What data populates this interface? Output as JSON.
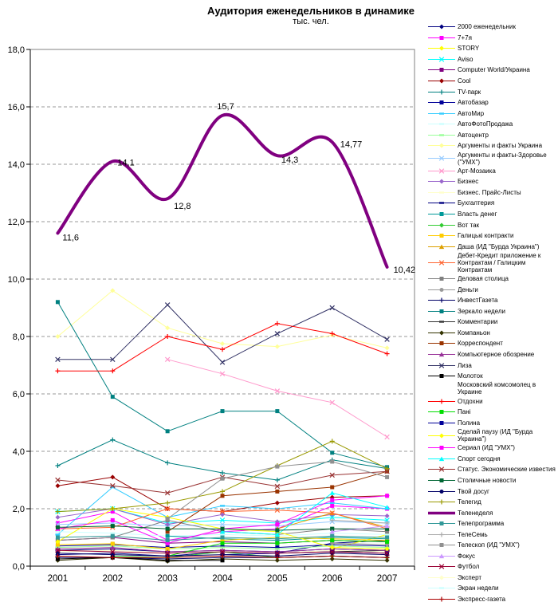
{
  "chart": {
    "title": "Аудитория еженедельников в динамике",
    "subtitle": "тыс. чел."
  },
  "chart_data": {
    "type": "line",
    "categories": [
      "2001",
      "2002",
      "2003",
      "2004",
      "2005",
      "2006",
      "2007"
    ],
    "ylim": [
      0,
      18
    ],
    "y_tick_step": 2,
    "y_tick_labels": [
      "0,0",
      "2,0",
      "4,0",
      "6,0",
      "8,0",
      "10,0",
      "12,0",
      "14,0",
      "16,0",
      "18,0"
    ],
    "grid": "horizontal-dashed",
    "legend_position": "right",
    "highlight_series": "Теленеделя",
    "point_labels": {
      "series": "Теленеделя",
      "labels": [
        "11,6",
        "14,1",
        "12,8",
        "15,7",
        "14,3",
        "14,77",
        "10,42"
      ],
      "offsets": [
        [
          6,
          5,
          "start"
        ],
        [
          6,
          1,
          "start"
        ],
        [
          8,
          9,
          "start"
        ],
        [
          4,
          -12,
          "middle"
        ],
        [
          5,
          5,
          "start"
        ],
        [
          10,
          2,
          "start"
        ],
        [
          8,
          3,
          "start"
        ]
      ]
    },
    "series": [
      {
        "name": "2000 еженедельник",
        "color": "#000080",
        "marker": "diamond",
        "values": [
          0.4,
          0.45,
          0.35,
          0.5,
          0.45,
          0.8,
          0.9
        ]
      },
      {
        "name": "7+7я",
        "color": "#ff00ff",
        "marker": "square",
        "values": [
          1.5,
          1.9,
          0.9,
          1.2,
          1.3,
          2.1,
          2.0
        ]
      },
      {
        "name": "STORY",
        "color": "#ffff00",
        "marker": "diamond",
        "values": [
          null,
          null,
          null,
          null,
          null,
          0.6,
          1.1
        ]
      },
      {
        "name": "Aviso",
        "color": "#00ffff",
        "marker": "x",
        "values": [
          1.9,
          2.0,
          1.5,
          1.6,
          1.5,
          1.7,
          1.6
        ]
      },
      {
        "name": "Computer World/Украина",
        "color": "#800080",
        "marker": "square",
        "values": [
          0.9,
          1.0,
          0.8,
          0.85,
          0.8,
          0.9,
          0.85
        ]
      },
      {
        "name": "Cool",
        "color": "#990000",
        "marker": "diamond",
        "values": [
          2.8,
          3.1,
          2.0,
          1.9,
          2.2,
          2.4,
          2.45
        ]
      },
      {
        "name": "TV-парк",
        "color": "#008080",
        "marker": "plus",
        "values": [
          3.5,
          4.4,
          3.6,
          3.25,
          3.0,
          3.7,
          3.4
        ]
      },
      {
        "name": "Автобазар",
        "color": "#000099",
        "marker": "square",
        "values": [
          0.7,
          0.75,
          0.65,
          0.7,
          0.65,
          0.75,
          0.7
        ]
      },
      {
        "name": "АвтоМир",
        "color": "#33ccff",
        "marker": "dash",
        "values": [
          1.1,
          2.75,
          1.7,
          2.1,
          2.0,
          2.2,
          2.0
        ]
      },
      {
        "name": "АвтоФотоПродажа",
        "color": "#ccffff",
        "marker": "dash",
        "values": [
          1.2,
          1.15,
          1.05,
          1.1,
          1.05,
          1.15,
          1.1
        ]
      },
      {
        "name": "Автоцентр",
        "color": "#99ff99",
        "marker": "dash",
        "values": [
          0.65,
          0.7,
          0.6,
          0.65,
          0.6,
          0.7,
          0.65
        ]
      },
      {
        "name": "Аргументы и факты Украина",
        "color": "#ffff99",
        "marker": "diamond",
        "values": [
          8.0,
          9.6,
          8.3,
          7.75,
          7.65,
          8.05,
          7.6
        ]
      },
      {
        "name": "Аргументы и факты-Здоровье (\"УМХ\")",
        "color": "#99ccff",
        "marker": "x",
        "values": [
          1.45,
          1.5,
          1.4,
          1.45,
          1.4,
          1.55,
          1.5
        ]
      },
      {
        "name": "Арт-Мозаика",
        "color": "#ff99cc",
        "marker": "x",
        "values": [
          null,
          null,
          7.2,
          6.7,
          6.1,
          5.7,
          4.5
        ]
      },
      {
        "name": "Бизнес",
        "color": "#9966cc",
        "marker": "diamond",
        "values": [
          1.7,
          2.0,
          1.45,
          1.8,
          1.55,
          1.8,
          1.75
        ]
      },
      {
        "name": "Бизнес. Прайс-Листы",
        "color": "#ffffcc",
        "marker": "dash",
        "values": [
          0.5,
          0.55,
          0.45,
          0.5,
          0.45,
          0.55,
          0.5
        ]
      },
      {
        "name": "Бухгалтерия",
        "color": "#000080",
        "marker": "dash",
        "values": [
          0.55,
          0.6,
          0.5,
          0.55,
          0.5,
          0.6,
          0.55
        ]
      },
      {
        "name": "Власть денег",
        "color": "#009999",
        "marker": "square",
        "values": [
          null,
          null,
          1.05,
          0.95,
          0.9,
          1.0,
          0.95
        ]
      },
      {
        "name": "Вот так",
        "color": "#33cc33",
        "marker": "diamond",
        "values": [
          null,
          0.35,
          0.3,
          0.5,
          0.3,
          0.35,
          0.3
        ]
      },
      {
        "name": "Галицькі контракти",
        "color": "#ffcc00",
        "marker": "square",
        "values": [
          0.75,
          0.78,
          0.6,
          0.9,
          1.0,
          0.95,
          0.9
        ]
      },
      {
        "name": "Даша (ИД \"Бурда Украина\")",
        "color": "#dda000",
        "marker": "triangle",
        "values": [
          null,
          null,
          null,
          null,
          1.3,
          1.85,
          1.35
        ]
      },
      {
        "name": "Дебет-Кредит приложение к Контрактам / Галицким Контрактам",
        "color": "#ff6633",
        "marker": "x",
        "values": [
          1.3,
          1.35,
          2.0,
          1.9,
          1.95,
          1.85,
          1.3
        ]
      },
      {
        "name": "Деловая столица",
        "color": "#808080",
        "marker": "square",
        "values": [
          0.9,
          1.0,
          1.6,
          1.2,
          1.1,
          1.3,
          1.2
        ]
      },
      {
        "name": "Деньги",
        "color": "#999999",
        "marker": "circle",
        "values": [
          null,
          null,
          null,
          null,
          null,
          0.8,
          0.75
        ]
      },
      {
        "name": "ИнвестГазета",
        "color": "#000066",
        "marker": "plus",
        "values": [
          0.3,
          0.3,
          0.25,
          0.3,
          0.3,
          0.35,
          0.3
        ]
      },
      {
        "name": "Зеркало недели",
        "color": "#008080",
        "marker": "square",
        "values": [
          9.2,
          5.9,
          4.7,
          5.4,
          5.4,
          3.95,
          3.45
        ]
      },
      {
        "name": "Комментарии",
        "color": "#333333",
        "marker": "dash",
        "values": [
          null,
          null,
          null,
          null,
          null,
          0.5,
          0.55
        ]
      },
      {
        "name": "Компаньон",
        "color": "#333300",
        "marker": "diamond",
        "values": [
          0.2,
          0.3,
          0.17,
          0.25,
          0.2,
          0.25,
          0.2
        ]
      },
      {
        "name": "Корреспондент",
        "color": "#993300",
        "marker": "square",
        "values": [
          null,
          null,
          1.2,
          2.45,
          2.6,
          2.75,
          3.3
        ]
      },
      {
        "name": "Компьютерное обозрение",
        "color": "#993399",
        "marker": "triangle",
        "values": [
          0.6,
          0.65,
          0.5,
          0.55,
          0.5,
          0.6,
          0.55
        ]
      },
      {
        "name": "Лиза",
        "color": "#333366",
        "marker": "x",
        "values": [
          7.2,
          7.2,
          9.1,
          7.1,
          8.1,
          9.0,
          7.9
        ]
      },
      {
        "name": "Молоток",
        "color": "#000000",
        "marker": "square",
        "values": [
          0.25,
          0.3,
          0.2,
          0.2,
          null,
          null,
          null
        ]
      },
      {
        "name": "Московский комсомолец в Украине",
        "color": null,
        "marker": "none",
        "values": [
          null,
          null,
          null,
          null,
          null,
          null,
          null
        ]
      },
      {
        "name": "Отдохни",
        "color": "#ff0000",
        "marker": "plus",
        "values": [
          6.8,
          6.8,
          8.0,
          7.55,
          8.45,
          8.1,
          7.4
        ]
      },
      {
        "name": "Пані",
        "color": "#00dd00",
        "marker": "square",
        "values": [
          null,
          null,
          0.35,
          0.8,
          0.8,
          0.9,
          0.85
        ]
      },
      {
        "name": "Полина",
        "color": "#000099",
        "marker": "square",
        "values": [
          null,
          null,
          null,
          0.4,
          0.45,
          0.5,
          0.45
        ]
      },
      {
        "name": "Сделай паузу (ИД \"Бурда Украина\")",
        "color": "#ffff00",
        "marker": "diamond",
        "values": [
          0.85,
          2.0,
          1.7,
          1.3,
          1.2,
          0.65,
          0.6
        ]
      },
      {
        "name": "Сериал (ИД \"УМХ\")",
        "color": "#ff00ff",
        "marker": "square",
        "values": [
          1.3,
          1.6,
          0.8,
          1.3,
          1.45,
          2.3,
          2.45
        ]
      },
      {
        "name": "Спорт сегодня",
        "color": "#00ffff",
        "marker": "triangle",
        "values": [
          null,
          null,
          null,
          1.2,
          1.1,
          2.55,
          2.05
        ]
      },
      {
        "name": "Статус. Экономические известия",
        "color": "#993333",
        "marker": "x",
        "values": [
          3.0,
          2.8,
          2.55,
          3.1,
          2.78,
          3.17,
          3.3
        ]
      },
      {
        "name": "Столичные новости",
        "color": "#006633",
        "marker": "square",
        "values": [
          1.35,
          1.4,
          1.3,
          1.3,
          1.25,
          1.3,
          1.3
        ]
      },
      {
        "name": "Твой досуг",
        "color": "#000066",
        "marker": "circle",
        "values": [
          0.45,
          0.4,
          0.35,
          0.4,
          0.35,
          0.45,
          0.4
        ]
      },
      {
        "name": "Телегид",
        "color": "#999900",
        "marker": "plus",
        "values": [
          1.9,
          2.0,
          2.2,
          2.6,
          3.5,
          4.35,
          3.4
        ]
      },
      {
        "name": "Теленеделя",
        "color": "#800080",
        "marker": "none",
        "width": 4,
        "smooth": true,
        "values": [
          11.6,
          14.1,
          12.8,
          15.7,
          14.3,
          14.77,
          10.42
        ]
      },
      {
        "name": "Телепрограмма",
        "color": "#339999",
        "marker": "square",
        "values": [
          1.0,
          1.05,
          0.9,
          1.0,
          0.95,
          1.05,
          1.0
        ]
      },
      {
        "name": "ТелеСемь",
        "color": "#aaaaaa",
        "marker": "plus",
        "values": [
          null,
          null,
          null,
          null,
          null,
          1.6,
          1.5
        ]
      },
      {
        "name": "Телескоп (ИД \"УМХ\")",
        "color": "#909090",
        "marker": "square",
        "values": [
          null,
          null,
          1.65,
          3.05,
          3.47,
          3.64,
          3.1
        ]
      },
      {
        "name": "Фокус",
        "color": "#cc99ff",
        "marker": "triangle",
        "values": [
          null,
          null,
          null,
          null,
          null,
          1.2,
          1.4
        ]
      },
      {
        "name": "Футбол",
        "color": "#990033",
        "marker": "x",
        "values": [
          0.55,
          0.5,
          0.45,
          0.5,
          0.45,
          0.5,
          0.45
        ]
      },
      {
        "name": "Эксперт",
        "color": "#ffffcc",
        "marker": "diamond",
        "values": [
          null,
          null,
          null,
          null,
          null,
          null,
          null
        ]
      },
      {
        "name": "Экран недели",
        "color": "#ccffff",
        "marker": "dash",
        "values": [
          null,
          null,
          null,
          null,
          null,
          null,
          null
        ]
      },
      {
        "name": "Экспресс-газета",
        "color": "#aa0000",
        "marker": "plus",
        "values": [
          0.35,
          0.3,
          0.3,
          0.35,
          0.3,
          0.35,
          0.3
        ]
      }
    ]
  }
}
